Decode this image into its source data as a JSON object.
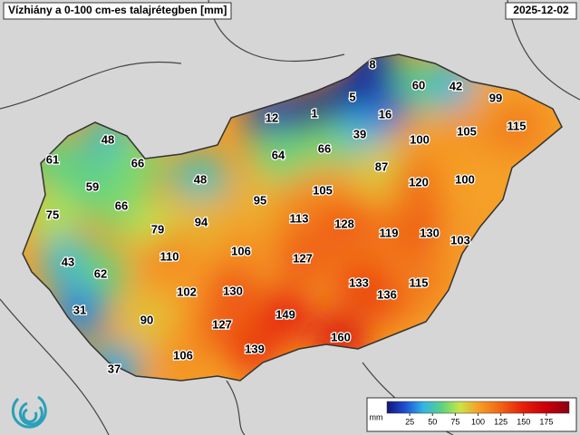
{
  "header": {
    "title": "Vízhiány a 0-100 cm-es talajrétegben [mm]",
    "date": "2025-12-02"
  },
  "map": {
    "values": [
      8,
      60,
      42,
      99,
      5,
      1,
      12,
      16,
      39,
      66,
      100,
      105,
      115,
      48,
      61,
      66,
      64,
      87,
      59,
      48,
      95,
      105,
      120,
      100,
      75,
      66,
      79,
      94,
      113,
      128,
      119,
      130,
      103,
      43,
      110,
      106,
      127,
      62,
      133,
      136,
      115,
      102,
      130,
      31,
      90,
      149,
      127,
      160,
      139,
      106,
      37
    ]
  },
  "colorbar": {
    "unit": "mm",
    "lim": [
      0,
      200
    ],
    "ticks": [
      25,
      50,
      75,
      100,
      125,
      150,
      175
    ]
  }
}
